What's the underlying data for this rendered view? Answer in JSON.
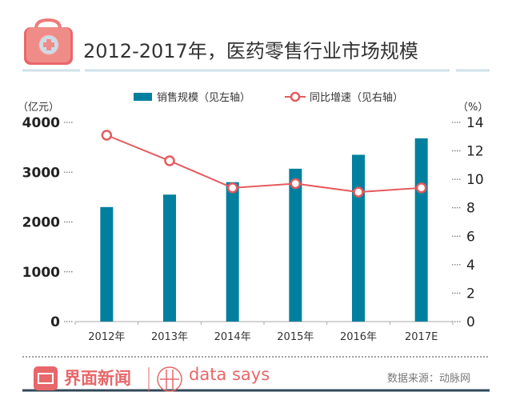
{
  "header": {
    "title": "2012-2017年，医药零售行业市场规模"
  },
  "footer": {
    "brand_cn": "界面新闻",
    "brand_en": "data says",
    "source": "数据来源：动脉网"
  },
  "colors": {
    "bar": "#00809e",
    "line": "#e65a5e",
    "accent": "#ee7a78"
  },
  "chart_data": {
    "type": "bar",
    "title": "2012-2017年，医药零售行业市场规模",
    "categories": [
      "2012年",
      "2013年",
      "2014年",
      "2015年",
      "2016年",
      "2017E"
    ],
    "series": [
      {
        "name": "销售规模（见左轴）",
        "type": "bar",
        "axis": "left",
        "values": [
          2300,
          2550,
          2800,
          3070,
          3350,
          3680
        ]
      },
      {
        "name": "同比增速（见右轴）",
        "type": "line",
        "axis": "right",
        "values": [
          13.1,
          11.3,
          9.4,
          9.7,
          9.1,
          9.4
        ]
      }
    ],
    "ylabel_left": "（亿元）",
    "ylabel_right": "（%）",
    "ylim_left": [
      0,
      4000
    ],
    "ylim_right": [
      0,
      14
    ],
    "yticks_left": [
      "0",
      "1000",
      "2000",
      "3000",
      "4000"
    ],
    "yticks_right": [
      "0",
      "2",
      "4",
      "6",
      "8",
      "10",
      "12",
      "14"
    ],
    "legend": "top-center",
    "grid": false
  }
}
